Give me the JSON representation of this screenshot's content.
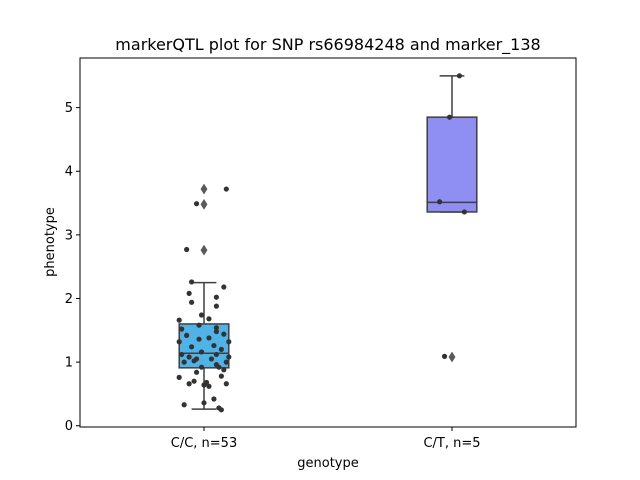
{
  "chart_data": {
    "type": "box",
    "title": "markerQTL plot for SNP rs66984248 and marker_138",
    "xlabel": "genotype",
    "ylabel": "phenotype",
    "ylim": [
      -0.02,
      5.78
    ],
    "yticks": [
      0,
      1,
      2,
      3,
      4,
      5
    ],
    "grid": false,
    "categories": [
      "C/C, n=53",
      "C/T, n=5"
    ],
    "boxes": [
      {
        "category": "C/C, n=53",
        "color": "#4fb3e8",
        "q1": 0.91,
        "median": 1.14,
        "q3": 1.6,
        "whisker_low": 0.26,
        "whisker_high": 2.25,
        "outliers": [
          2.76,
          3.48,
          3.72
        ],
        "points": [
          {
            "x": -0.08,
            "y": 0.33
          },
          {
            "x": 0.06,
            "y": 0.28
          },
          {
            "x": 0.07,
            "y": 0.25
          },
          {
            "x": 0.0,
            "y": 0.36
          },
          {
            "x": 0.04,
            "y": 0.42
          },
          {
            "x": 0.0,
            "y": 0.64
          },
          {
            "x": -0.06,
            "y": 0.66
          },
          {
            "x": 0.02,
            "y": 0.62
          },
          {
            "x": 0.09,
            "y": 0.66
          },
          {
            "x": 0.01,
            "y": 0.68
          },
          {
            "x": -0.1,
            "y": 0.76
          },
          {
            "x": 0.07,
            "y": 0.78
          },
          {
            "x": -0.03,
            "y": 0.84
          },
          {
            "x": 0.08,
            "y": 0.88
          },
          {
            "x": -0.01,
            "y": 0.92
          },
          {
            "x": 0.05,
            "y": 0.96
          },
          {
            "x": -0.08,
            "y": 1.0
          },
          {
            "x": -0.04,
            "y": 1.02
          },
          {
            "x": 0.09,
            "y": 1.0
          },
          {
            "x": -0.03,
            "y": 1.05
          },
          {
            "x": 0.03,
            "y": 1.05
          },
          {
            "x": -0.06,
            "y": 1.08
          },
          {
            "x": 0.1,
            "y": 1.08
          },
          {
            "x": -0.09,
            "y": 1.12
          },
          {
            "x": 0.05,
            "y": 1.12
          },
          {
            "x": -0.01,
            "y": 1.16
          },
          {
            "x": 0.07,
            "y": 1.2
          },
          {
            "x": -0.05,
            "y": 1.24
          },
          {
            "x": 0.04,
            "y": 1.26
          },
          {
            "x": 0.1,
            "y": 1.32
          },
          {
            "x": -0.1,
            "y": 1.32
          },
          {
            "x": -0.02,
            "y": 1.36
          },
          {
            "x": 0.02,
            "y": 1.38
          },
          {
            "x": -0.07,
            "y": 1.42
          },
          {
            "x": 0.05,
            "y": 1.48
          },
          {
            "x": -0.09,
            "y": 1.52
          },
          {
            "x": 0.05,
            "y": 1.54
          },
          {
            "x": -0.02,
            "y": 1.58
          },
          {
            "x": -0.1,
            "y": 1.66
          },
          {
            "x": 0.02,
            "y": 1.68
          },
          {
            "x": -0.01,
            "y": 1.74
          },
          {
            "x": 0.05,
            "y": 1.88
          },
          {
            "x": 0.05,
            "y": 2.02
          },
          {
            "x": -0.06,
            "y": 2.08
          },
          {
            "x": 0.08,
            "y": 2.18
          },
          {
            "x": -0.05,
            "y": 2.26
          },
          {
            "x": -0.07,
            "y": 2.77
          },
          {
            "x": -0.03,
            "y": 3.49
          },
          {
            "x": 0.09,
            "y": 3.72
          },
          {
            "x": 0.06,
            "y": 0.92
          },
          {
            "x": -0.04,
            "y": 0.7
          },
          {
            "x": 0.08,
            "y": 1.44
          },
          {
            "x": -0.05,
            "y": 1.94
          }
        ]
      },
      {
        "category": "C/T, n=5",
        "color": "#8f8ef2",
        "q1": 3.36,
        "median": 3.51,
        "q3": 4.85,
        "whisker_low": 3.36,
        "whisker_high": 5.5,
        "outliers": [
          1.08
        ],
        "points": [
          {
            "x": 0.03,
            "y": 5.5
          },
          {
            "x": -0.01,
            "y": 4.85
          },
          {
            "x": -0.05,
            "y": 3.52
          },
          {
            "x": 0.05,
            "y": 3.36
          },
          {
            "x": -0.03,
            "y": 1.09
          }
        ]
      }
    ]
  }
}
